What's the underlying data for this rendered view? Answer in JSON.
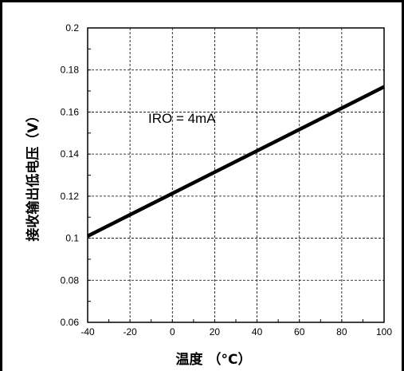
{
  "chart_data": {
    "type": "line",
    "xlabel": "温度 （°C）",
    "ylabel": "接收输出低电压（V）",
    "xlim": [
      -40,
      100
    ],
    "ylim": [
      0.06,
      0.2
    ],
    "xticks": [
      -40,
      -20,
      0,
      20,
      40,
      60,
      80,
      100
    ],
    "yticks": [
      0.06,
      0.08,
      0.1,
      0.12,
      0.14,
      0.16,
      0.18,
      0.2
    ],
    "xtick_labels": [
      "-40",
      "-20",
      "0",
      "20",
      "40",
      "60",
      "80",
      "100"
    ],
    "ytick_labels": [
      "0.06",
      "0.08",
      "0.1",
      "0.12",
      "0.14",
      "0.16",
      "0.18",
      "0.2"
    ],
    "grid": true,
    "annotation": "IRO = 4mA",
    "series": [
      {
        "x": [
          -40,
          100
        ],
        "y": [
          0.101,
          0.172
        ],
        "color": "#000000"
      }
    ]
  }
}
